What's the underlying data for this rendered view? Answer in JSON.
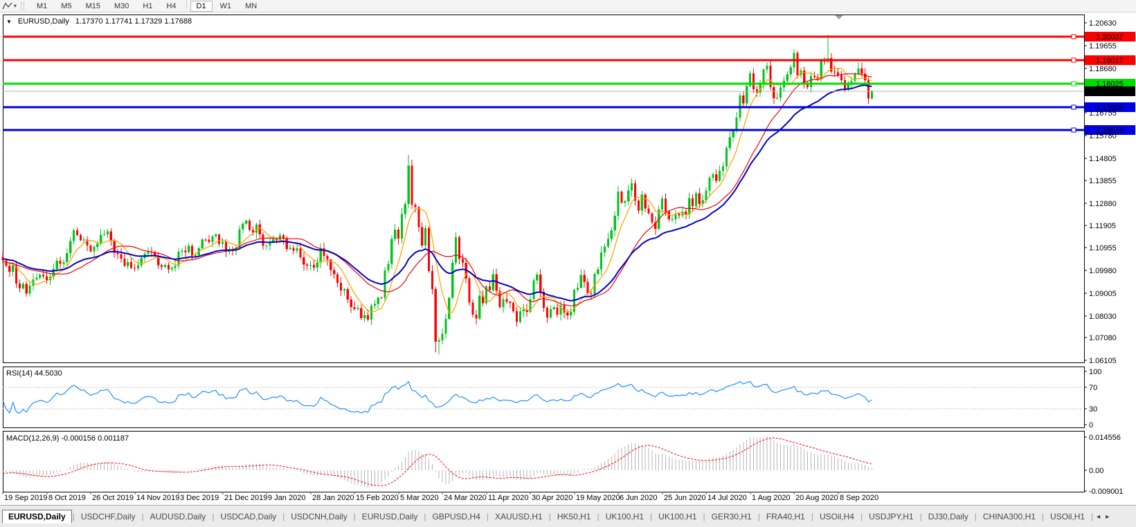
{
  "toolbar": {
    "timeframe_buttons": [
      "M1",
      "M5",
      "M15",
      "M30",
      "H1",
      "H4",
      "D1",
      "W1",
      "MN"
    ],
    "active_timeframe": "D1",
    "caret_icon": "▾"
  },
  "chart_header": {
    "collapse_icon": "▼",
    "symbol_period": "EURUSD,Daily",
    "ohlc": "1.17370 1.17741 1.17329 1.17688"
  },
  "indicators": {
    "rsi": {
      "label": "RSI(14) 44.5030"
    },
    "macd": {
      "label": "MACD(12,26,9) -0.000156 0.001187"
    }
  },
  "palette": {
    "bull": "#00C41E",
    "bear": "#FF0000",
    "ma_fast": "#FFA500",
    "ma_mid": "#EE0000",
    "ma_slow": "#0000C8",
    "rsi_line": "#1E90FF",
    "rsi_level_dash": "#BFBFBF",
    "macd_hist": "#B4B4B4",
    "macd_signal": "#FF0000",
    "current_price_line": "#B4B4B4",
    "current_price_badge": "#000000",
    "panel_border": "#000000",
    "shift_marker": "#A0A0A0"
  },
  "chart_data": {
    "type": "candlestick",
    "symbol": "EURUSD",
    "timeframe": "Daily",
    "last_ohlc": {
      "open": 1.1737,
      "high": 1.17741,
      "low": 1.17329,
      "close": 1.17688
    },
    "y_axis": {
      "ticks": [
        "1.20630",
        "1.19655",
        "1.18680",
        "1.16755",
        "1.15780",
        "1.14805",
        "1.13855",
        "1.12880",
        "1.11905",
        "1.10955",
        "1.09980",
        "1.09005",
        "1.08030",
        "1.07080",
        "1.06105"
      ]
    },
    "x_axis": {
      "labels": [
        "19 Sep 2019",
        "8 Oct 2019",
        "26 Oct 2019",
        "14 Nov 2019",
        "3 Dec 2019",
        "21 Dec 2019",
        "9 Jan 2020",
        "28 Jan 2020",
        "15 Feb 2020",
        "5 Mar 2020",
        "24 Mar 2020",
        "11 Apr 2020",
        "30 Apr 2020",
        "19 May 2020",
        "6 Jun 2020",
        "25 Jun 2020",
        "14 Jul 2020",
        "1 Aug 2020",
        "20 Aug 2020",
        "8 Sep 2020"
      ],
      "tick_step": 13
    },
    "hlines": [
      {
        "price": 1.20037,
        "label": "1.20037",
        "color": "#FF0000",
        "name": "resistance-upper"
      },
      {
        "price": 1.19017,
        "label": "1.19017",
        "color": "#FF0000",
        "name": "resistance-lower"
      },
      {
        "price": 1.18025,
        "label": "1.18025",
        "color": "#00DC00",
        "name": "support-green"
      },
      {
        "price": 1.17005,
        "label": "1.17005",
        "color": "#0000E0",
        "name": "support-blue-upper"
      },
      {
        "price": 1.16013,
        "label": "1.16013",
        "color": "#0000E0",
        "name": "support-blue-lower"
      }
    ],
    "current_price": {
      "price": 1.17688,
      "label": "1.17688"
    },
    "moving_averages": [
      {
        "type": "SMA",
        "period": 7,
        "color_key": "ma_fast",
        "width": 1.3
      },
      {
        "type": "SMA",
        "period": 20,
        "color_key": "ma_mid",
        "width": 1.2
      },
      {
        "type": "EMA",
        "period": 30,
        "color_key": "ma_slow",
        "width": 2
      }
    ],
    "candles": {
      "closes": [
        1.1041,
        1.1017,
        1.0992,
        1.1021,
        1.0942,
        1.0921,
        1.094,
        1.0899,
        1.0933,
        1.0959,
        1.0966,
        1.0978,
        1.0972,
        1.0957,
        1.0971,
        1.1004,
        1.104,
        1.1026,
        1.1034,
        1.1073,
        1.1124,
        1.117,
        1.115,
        1.1128,
        1.1131,
        1.1105,
        1.108,
        1.1099,
        1.1112,
        1.1151,
        1.1152,
        1.1166,
        1.1127,
        1.1074,
        1.1068,
        1.1049,
        1.1018,
        1.1034,
        1.1009,
        1.1007,
        1.1021,
        1.1051,
        1.107,
        1.1078,
        1.1074,
        1.1061,
        1.1021,
        1.1013,
        1.1022,
        1.1003,
        1.1009,
        1.1018,
        1.1078,
        1.1082,
        1.1077,
        1.1103,
        1.106,
        1.1064,
        1.1093,
        1.1131,
        1.113,
        1.112,
        1.1145,
        1.1152,
        1.1112,
        1.1122,
        1.1078,
        1.109,
        1.1087,
        1.1096,
        1.1175,
        1.1199,
        1.1212,
        1.1172,
        1.116,
        1.1196,
        1.1153,
        1.1104,
        1.1105,
        1.1121,
        1.1134,
        1.1128,
        1.115,
        1.1135,
        1.109,
        1.1095,
        1.1083,
        1.1093,
        1.1055,
        1.1023,
        1.1019,
        1.1022,
        1.101,
        1.1032,
        1.1093,
        1.106,
        1.1044,
        1.0999,
        1.0981,
        1.0945,
        1.0911,
        1.0917,
        1.0873,
        1.084,
        1.0831,
        1.0836,
        1.0792,
        1.0806,
        1.0786,
        1.0846,
        1.0854,
        1.0881,
        1.088,
        1.0998,
        1.1026,
        1.1134,
        1.1173,
        1.1135,
        1.1241,
        1.1284,
        1.1448,
        1.1281,
        1.127,
        1.1184,
        1.1105,
        1.118,
        1.0995,
        1.0918,
        1.0691,
        1.0698,
        1.0726,
        1.0789,
        1.088,
        1.103,
        1.1141,
        1.1047,
        1.1031,
        1.0964,
        1.0859,
        1.0808,
        1.0791,
        1.089,
        1.0857,
        1.093,
        1.0913,
        1.0981,
        1.091,
        1.084,
        1.0875,
        1.0863,
        1.0858,
        1.0822,
        1.0777,
        1.0823,
        1.083,
        1.0819,
        1.0874,
        1.0955,
        1.098,
        1.0905,
        1.0837,
        1.0795,
        1.0832,
        1.0839,
        1.0807,
        1.0847,
        1.0816,
        1.0805,
        1.082,
        1.0915,
        1.0924,
        1.0979,
        1.0949,
        1.09,
        1.0897,
        1.0983,
        1.1002,
        1.1076,
        1.1101,
        1.1134,
        1.117,
        1.1233,
        1.1337,
        1.1289,
        1.1295,
        1.1341,
        1.1373,
        1.1298,
        1.1256,
        1.1323,
        1.1264,
        1.1244,
        1.1205,
        1.1177,
        1.126,
        1.1308,
        1.1251,
        1.1218,
        1.1218,
        1.1242,
        1.1234,
        1.1251,
        1.1239,
        1.1309,
        1.1274,
        1.1329,
        1.1284,
        1.13,
        1.1341,
        1.1397,
        1.1411,
        1.1383,
        1.1427,
        1.1446,
        1.1525,
        1.157,
        1.1598,
        1.1656,
        1.1751,
        1.1716,
        1.1791,
        1.1846,
        1.1778,
        1.1762,
        1.1803,
        1.1862,
        1.1878,
        1.1787,
        1.1738,
        1.174,
        1.1785,
        1.1813,
        1.1842,
        1.1871,
        1.1933,
        1.1839,
        1.1857,
        1.1797,
        1.1787,
        1.1834,
        1.183,
        1.182,
        1.1903,
        1.1896,
        1.1911,
        1.1854,
        1.185,
        1.1839,
        1.1816,
        1.1779,
        1.1801,
        1.1813,
        1.1845,
        1.1867,
        1.1845,
        1.1816,
        1.1737,
        1.17688
      ],
      "overrides": {
        "7": {
          "l": 1.0885
        },
        "21": {
          "h": 1.118
        },
        "108": {
          "l": 1.0778
        },
        "120": {
          "h": 1.1495
        },
        "128": {
          "l": 1.0645
        },
        "129": {
          "l": 1.0636
        },
        "244": {
          "h": 1.2011
        },
        "257": {
          "o": 1.1737,
          "h": 1.17741,
          "l": 1.17329
        }
      }
    },
    "rsi": {
      "period": 14,
      "last": 44.503,
      "scale": [
        100,
        70,
        30,
        0
      ],
      "levels": [
        70,
        30
      ]
    },
    "macd": {
      "params": [
        12,
        26,
        9
      ],
      "last_main": -0.000156,
      "last_signal": 0.001187,
      "scale": [
        {
          "label": "0.014556",
          "value": 0.014556
        },
        {
          "label": "0.00",
          "value": 0
        },
        {
          "label": "-0.009001",
          "value": -0.009001
        }
      ]
    }
  },
  "tabs": {
    "items": [
      "EURUSD,Daily",
      "USDCHF,Daily",
      "AUDUSD,Daily",
      "USDCAD,Daily",
      "USDCNH,Daily",
      "EURUSD,Daily",
      "GBPUSD,H4",
      "XAUUSD,H1",
      "HK50,H1",
      "UK100,H1",
      "UK100,H1",
      "GER30,H1",
      "FRA40,H1",
      "USOil,H4",
      "USDJPY,H1",
      "DJ30,Daily",
      "CHINA300,H1",
      "USOil,H1"
    ],
    "active_index": 0,
    "scroll_left": "◂",
    "scroll_right": "▸"
  }
}
